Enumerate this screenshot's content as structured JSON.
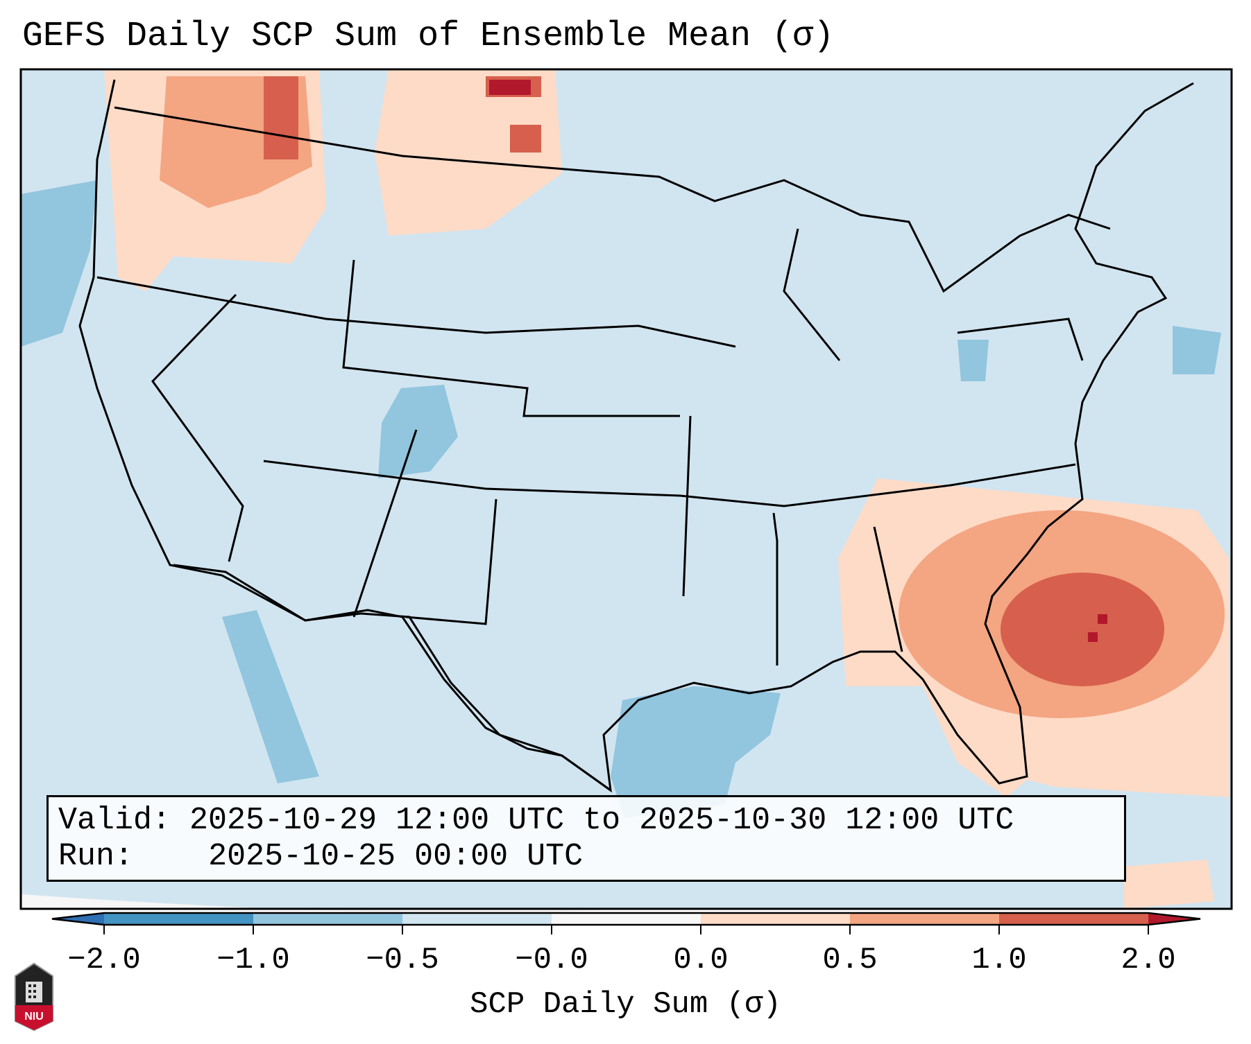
{
  "title": "GEFS Daily SCP Sum of Ensemble Mean (σ)",
  "legend": {
    "valid_label": "Valid:",
    "valid_value": "2025-10-29 12:00 UTC to 2025-10-30 12:00 UTC",
    "run_label": "Run:",
    "run_value": "2025-10-25 00:00 UTC"
  },
  "logo_text": "NIU",
  "chart_data": {
    "type": "heatmap",
    "title": "GEFS Daily SCP Sum of Ensemble Mean (σ)",
    "colorbar_label": "SCP Daily Sum (σ)",
    "colorbar_ticks": [
      "−2.0",
      "−1.0",
      "−0.5",
      "−0.0",
      "0.0",
      "0.5",
      "1.0",
      "2.0"
    ],
    "colorbar_bins": [
      {
        "range": "<-2.0",
        "color": "#2f6fb3"
      },
      {
        "range": "-2.0 to -1.0",
        "color": "#4393c3"
      },
      {
        "range": "-1.0 to -0.5",
        "color": "#92c5de"
      },
      {
        "range": "-0.5 to -0.0",
        "color": "#d1e5f0"
      },
      {
        "range": "-0.0 to 0.0",
        "color": "#f7f7f7"
      },
      {
        "range": "0.0 to 0.5",
        "color": "#fddbc7"
      },
      {
        "range": "0.5 to 1.0",
        "color": "#f4a582"
      },
      {
        "range": "1.0 to 2.0",
        "color": "#d6604d"
      },
      {
        "range": ">2.0",
        "color": "#b2182b"
      }
    ],
    "region": "Contiguous United States",
    "highlights": [
      {
        "area": "Southeast US / off Carolina-Georgia coast",
        "max_sigma_range": ">2.0"
      },
      {
        "area": "Pacific Northwest and northern Plains / southern Canada",
        "max_sigma_range": "1.0 to >2.0"
      },
      {
        "area": "Western Gulf of Mexico",
        "max_sigma_range": "-1.0 to -0.5"
      }
    ]
  }
}
